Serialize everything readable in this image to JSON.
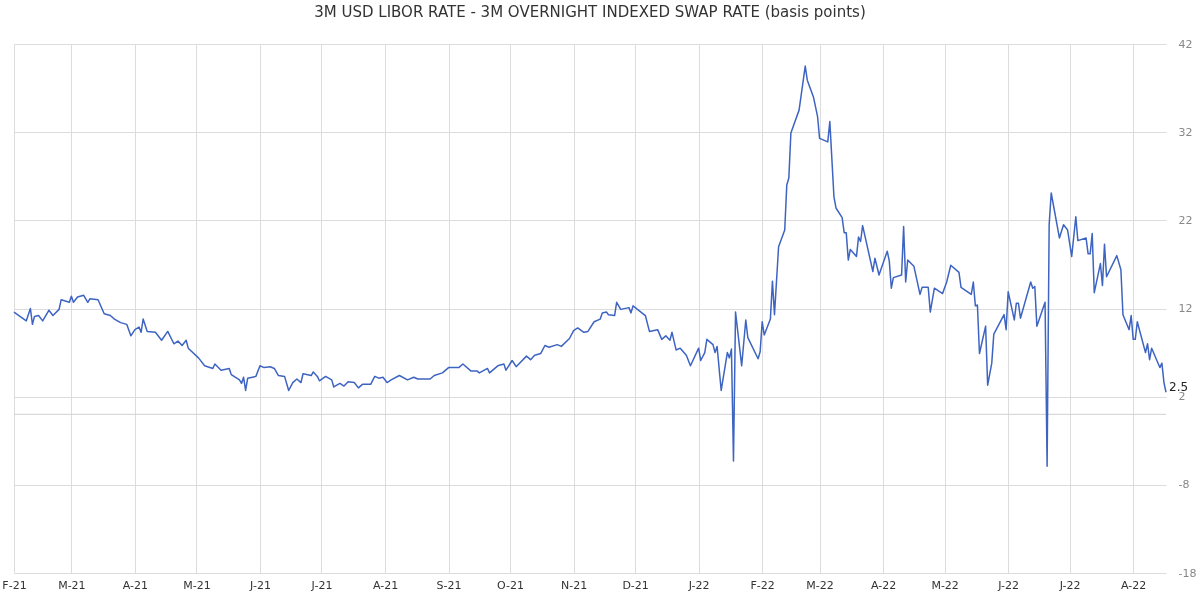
{
  "chart_data": {
    "type": "line",
    "title": "3M USD LIBOR RATE - 3M OVERNIGHT INDEXED SWAP RATE (basis points)",
    "x": [
      "2021-02-01",
      "2021-02-07",
      "2021-02-09",
      "2021-02-10",
      "2021-02-11",
      "2021-02-13",
      "2021-02-15",
      "2021-02-18",
      "2021-02-20",
      "2021-02-23",
      "2021-02-24",
      "2021-02-28",
      "2021-03-01",
      "2021-03-02",
      "2021-03-04",
      "2021-03-07",
      "2021-03-09",
      "2021-03-10",
      "2021-03-14",
      "2021-03-17",
      "2021-03-20",
      "2021-03-22",
      "2021-03-25",
      "2021-03-28",
      "2021-03-30",
      "2021-04-01",
      "2021-04-03",
      "2021-04-04",
      "2021-04-05",
      "2021-04-07",
      "2021-04-11",
      "2021-04-14",
      "2021-04-17",
      "2021-04-20",
      "2021-04-22",
      "2021-04-24",
      "2021-04-26",
      "2021-04-27",
      "2021-05-02",
      "2021-05-05",
      "2021-05-09",
      "2021-05-10",
      "2021-05-13",
      "2021-05-17",
      "2021-05-18",
      "2021-05-22",
      "2021-05-23",
      "2021-05-24",
      "2021-05-25",
      "2021-05-26",
      "2021-05-30",
      "2021-06-01",
      "2021-06-03",
      "2021-06-06",
      "2021-06-08",
      "2021-06-10",
      "2021-06-13",
      "2021-06-15",
      "2021-06-17",
      "2021-06-19",
      "2021-06-21",
      "2021-06-22",
      "2021-06-26",
      "2021-06-27",
      "2021-06-29",
      "2021-06-30",
      "2021-07-03",
      "2021-07-06",
      "2021-07-07",
      "2021-07-10",
      "2021-07-12",
      "2021-07-14",
      "2021-07-17",
      "2021-07-19",
      "2021-07-21",
      "2021-07-25",
      "2021-07-27",
      "2021-07-29",
      "2021-07-31",
      "2021-08-02",
      "2021-08-04",
      "2021-08-08",
      "2021-08-12",
      "2021-08-15",
      "2021-08-17",
      "2021-08-23",
      "2021-08-25",
      "2021-08-29",
      "2021-09-01",
      "2021-09-06",
      "2021-09-08",
      "2021-09-12",
      "2021-09-15",
      "2021-09-16",
      "2021-09-20",
      "2021-09-21",
      "2021-09-25",
      "2021-09-28",
      "2021-09-29",
      "2021-10-02",
      "2021-10-04",
      "2021-10-09",
      "2021-10-11",
      "2021-10-13",
      "2021-10-16",
      "2021-10-18",
      "2021-10-20",
      "2021-10-24",
      "2021-10-26",
      "2021-10-30",
      "2021-11-01",
      "2021-11-03",
      "2021-11-06",
      "2021-11-08",
      "2021-11-11",
      "2021-11-14",
      "2021-11-15",
      "2021-11-17",
      "2021-11-18",
      "2021-11-21",
      "2021-11-22",
      "2021-11-24",
      "2021-11-28",
      "2021-11-29",
      "2021-11-30",
      "2021-12-06",
      "2021-12-08",
      "2021-12-12",
      "2021-12-14",
      "2021-12-16",
      "2021-12-18",
      "2021-12-19",
      "2021-12-21",
      "2021-12-23",
      "2021-12-26",
      "2021-12-28",
      "2022-01-01",
      "2022-01-02",
      "2022-01-04",
      "2022-01-05",
      "2022-01-08",
      "2022-01-09",
      "2022-01-10",
      "2022-01-12",
      "2022-01-15",
      "2022-01-16",
      "2022-01-17",
      "2022-01-18",
      "2022-01-19",
      "2022-01-22",
      "2022-01-24",
      "2022-01-25",
      "2022-01-30",
      "2022-01-31",
      "2022-02-01",
      "2022-02-02",
      "2022-02-05",
      "2022-02-06",
      "2022-02-07",
      "2022-02-09",
      "2022-02-12",
      "2022-02-13",
      "2022-02-14",
      "2022-02-15",
      "2022-02-19",
      "2022-02-22",
      "2022-02-23",
      "2022-02-26",
      "2022-02-28",
      "2022-03-01",
      "2022-03-05",
      "2022-03-06",
      "2022-03-08",
      "2022-03-09",
      "2022-03-12",
      "2022-03-13",
      "2022-03-14",
      "2022-03-15",
      "2022-03-16",
      "2022-03-19",
      "2022-03-20",
      "2022-03-21",
      "2022-03-22",
      "2022-03-27",
      "2022-03-28",
      "2022-03-30",
      "2022-04-03",
      "2022-04-04",
      "2022-04-05",
      "2022-04-06",
      "2022-04-10",
      "2022-04-11",
      "2022-04-12",
      "2022-04-13",
      "2022-04-16",
      "2022-04-19",
      "2022-04-20",
      "2022-04-23",
      "2022-04-24",
      "2022-04-26",
      "2022-04-30",
      "2022-05-02",
      "2022-05-04",
      "2022-05-08",
      "2022-05-09",
      "2022-05-14",
      "2022-05-15",
      "2022-05-16",
      "2022-05-17",
      "2022-05-18",
      "2022-05-21",
      "2022-05-22",
      "2022-05-24",
      "2022-05-25",
      "2022-05-30",
      "2022-05-31",
      "2022-06-01",
      "2022-06-04",
      "2022-06-05",
      "2022-06-06",
      "2022-06-07",
      "2022-06-12",
      "2022-06-13",
      "2022-06-14",
      "2022-06-15",
      "2022-06-19",
      "2022-06-20",
      "2022-06-21",
      "2022-06-22",
      "2022-06-26",
      "2022-06-28",
      "2022-06-30",
      "2022-07-02",
      "2022-07-04",
      "2022-07-05",
      "2022-07-09",
      "2022-07-10",
      "2022-07-11",
      "2022-07-12",
      "2022-07-13",
      "2022-07-16",
      "2022-07-17",
      "2022-07-18",
      "2022-07-19",
      "2022-07-24",
      "2022-07-26",
      "2022-07-27",
      "2022-07-30",
      "2022-07-31",
      "2022-08-01",
      "2022-08-02",
      "2022-08-03",
      "2022-08-07",
      "2022-08-08",
      "2022-08-09",
      "2022-08-10",
      "2022-08-14",
      "2022-08-15",
      "2022-08-16",
      "2022-08-17"
    ],
    "series": [
      {
        "color": "#3e64c2",
        "values": [
          11.6,
          10.6,
          12.0,
          10.2,
          11.1,
          11.2,
          10.6,
          11.8,
          11.2,
          11.9,
          13.0,
          12.7,
          13.4,
          12.7,
          13.3,
          13.5,
          12.7,
          13.1,
          13.0,
          11.4,
          11.2,
          10.8,
          10.4,
          10.2,
          8.9,
          9.6,
          9.9,
          9.3,
          10.8,
          9.4,
          9.3,
          8.4,
          9.4,
          8.0,
          8.3,
          7.8,
          8.4,
          7.5,
          6.4,
          5.5,
          5.2,
          5.7,
          5.0,
          5.2,
          4.5,
          3.9,
          3.5,
          4.2,
          2.7,
          4.1,
          4.3,
          5.5,
          5.3,
          5.4,
          5.2,
          4.4,
          4.3,
          2.7,
          3.6,
          4.0,
          3.6,
          4.6,
          4.4,
          4.8,
          4.3,
          3.8,
          4.3,
          3.9,
          3.1,
          3.5,
          3.2,
          3.7,
          3.6,
          3.0,
          3.4,
          3.4,
          4.3,
          4.1,
          4.2,
          3.6,
          3.9,
          4.4,
          3.9,
          4.2,
          4.0,
          4.0,
          4.4,
          4.7,
          5.3,
          5.3,
          5.7,
          4.9,
          4.9,
          4.7,
          5.2,
          4.7,
          5.5,
          5.7,
          5.0,
          6.1,
          5.4,
          6.6,
          6.2,
          6.7,
          6.9,
          7.8,
          7.6,
          7.9,
          7.7,
          8.6,
          9.5,
          9.8,
          9.3,
          9.4,
          10.5,
          10.8,
          11.5,
          11.6,
          11.3,
          11.2,
          12.7,
          11.9,
          12.1,
          11.5,
          12.3,
          11.2,
          9.4,
          9.6,
          8.5,
          8.9,
          8.4,
          9.3,
          7.3,
          7.5,
          6.7,
          5.5,
          7.5,
          6.1,
          7.0,
          8.5,
          7.9,
          7.0,
          7.7,
          2.7,
          7.0,
          6.4,
          7.4,
          -5.3,
          11.6,
          5.5,
          10.7,
          8.7,
          6.3,
          7.1,
          10.5,
          9.0,
          10.8,
          15.1,
          11.3,
          19.0,
          20.9,
          26.0,
          26.8,
          31.9,
          34.5,
          39.5,
          37.9,
          36.0,
          33.8,
          31.3,
          30.9,
          33.2,
          24.7,
          23.4,
          22.3,
          20.6,
          20.6,
          17.5,
          18.7,
          17.9,
          20.1,
          19.6,
          21.4,
          16.2,
          17.7,
          15.8,
          18.5,
          17.4,
          14.3,
          15.5,
          15.8,
          21.3,
          15.0,
          17.5,
          16.8,
          13.6,
          14.4,
          14.4,
          11.6,
          14.3,
          13.7,
          15.0,
          16.9,
          16.1,
          14.4,
          13.6,
          15.0,
          12.3,
          12.4,
          6.9,
          10.0,
          3.3,
          5.8,
          9.1,
          11.3,
          9.6,
          13.9,
          10.7,
          12.6,
          12.6,
          10.9,
          15.0,
          14.3,
          14.5,
          10.0,
          12.7,
          -5.9,
          21.5,
          25.1,
          20.0,
          21.5,
          20.9,
          17.9,
          22.4,
          19.7,
          20.0,
          18.2,
          18.2,
          20.5,
          13.8,
          17.1,
          14.6,
          19.3,
          15.6,
          18.0,
          16.4,
          11.3,
          9.6,
          11.2,
          8.5,
          8.5,
          10.5,
          7.0,
          8.0,
          6.2,
          7.5,
          5.3,
          5.8,
          3.6,
          2.5
        ]
      }
    ],
    "xlim": [
      "2021-02-01",
      "2022-08-17"
    ],
    "xticks": [
      {
        "value": "2021-02-01",
        "label": "F-21"
      },
      {
        "value": "2021-03-01",
        "label": "M-21"
      },
      {
        "value": "2021-04-01",
        "label": "A-21"
      },
      {
        "value": "2021-05-01",
        "label": "M-21"
      },
      {
        "value": "2021-06-01",
        "label": "J-21"
      },
      {
        "value": "2021-07-01",
        "label": "J-21"
      },
      {
        "value": "2021-08-01",
        "label": "A-21"
      },
      {
        "value": "2021-09-01",
        "label": "S-21"
      },
      {
        "value": "2021-10-01",
        "label": "O-21"
      },
      {
        "value": "2021-11-01",
        "label": "N-21"
      },
      {
        "value": "2021-12-01",
        "label": "D-21"
      },
      {
        "value": "2022-01-01",
        "label": "J-22"
      },
      {
        "value": "2022-02-01",
        "label": "F-22"
      },
      {
        "value": "2022-03-01",
        "label": "M-22"
      },
      {
        "value": "2022-04-01",
        "label": "A-22"
      },
      {
        "value": "2022-05-01",
        "label": "M-22"
      },
      {
        "value": "2022-06-01",
        "label": "J-22"
      },
      {
        "value": "2022-07-01",
        "label": "J-22"
      },
      {
        "value": "2022-08-01",
        "label": "A-22"
      }
    ],
    "ylim": [
      -18,
      42
    ],
    "yticks": [
      -18,
      -8,
      2,
      12,
      22,
      32,
      42
    ],
    "ref_lines": [
      {
        "axis": "y",
        "value": 0,
        "color": "#d0d0d0"
      }
    ],
    "annotations": [
      {
        "text": "2.5",
        "x": "2022-08-17",
        "y": 2.5
      }
    ],
    "grid": true,
    "marker": "none",
    "line_style": "solid"
  }
}
